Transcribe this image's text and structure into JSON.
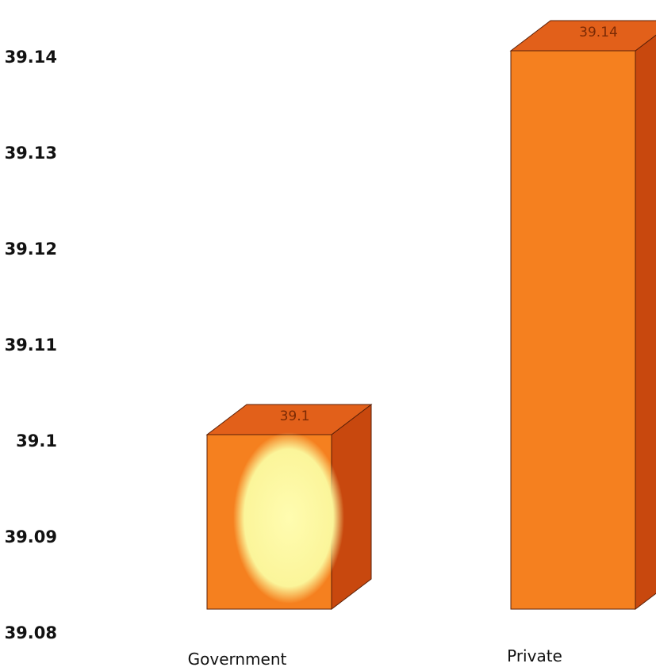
{
  "chart_data": {
    "type": "bar",
    "categories": [
      "Government",
      "Private"
    ],
    "values": [
      39.1,
      39.14
    ],
    "data_labels": [
      "39.1",
      "39.14"
    ],
    "yticks": [
      "39.08",
      "39.09",
      "39.1",
      "39.11",
      "39.12",
      "39.13",
      "39.14"
    ],
    "ylim": [
      39.08,
      39.14
    ],
    "title": "",
    "xlabel": "",
    "ylabel": "",
    "grid": false,
    "style": "3d-box",
    "colors": {
      "front": "#f5801f",
      "side": "#c8480e",
      "top": "#e2601a",
      "highlight": "#fbf59a"
    }
  }
}
